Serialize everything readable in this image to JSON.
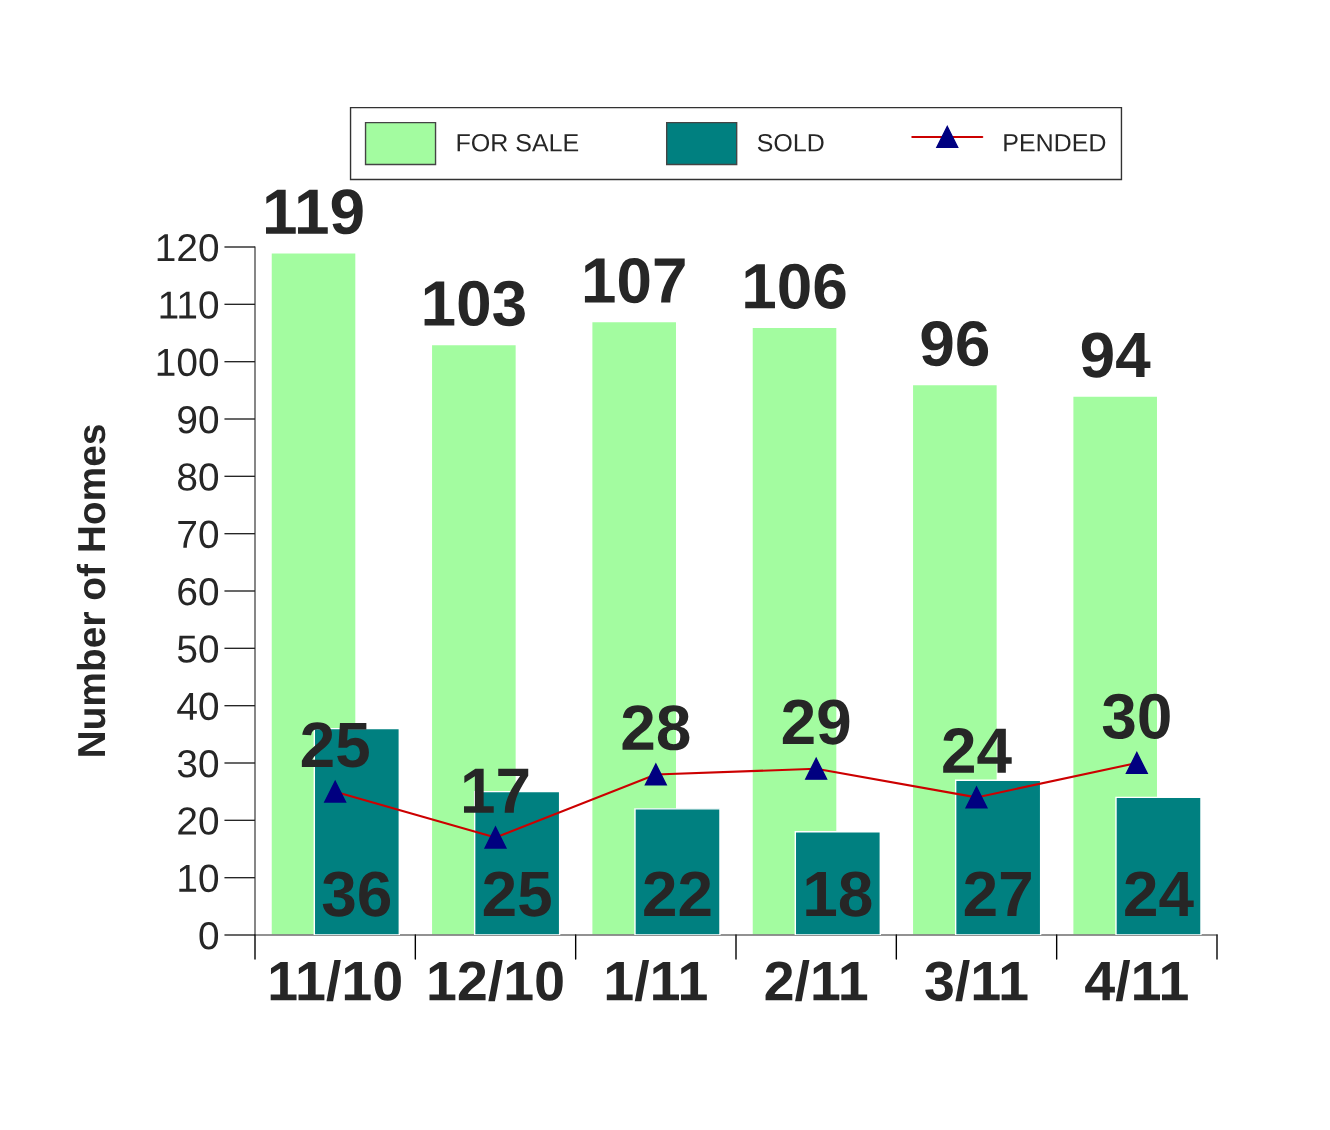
{
  "chart_data": {
    "type": "bar",
    "ylabel": "Number of Homes",
    "categories": [
      "11/10",
      "12/10",
      "1/11",
      "2/11",
      "3/11",
      "4/11"
    ],
    "series": [
      {
        "name": "FOR SALE",
        "color": "#a3fca0",
        "values": [
          119,
          103,
          107,
          106,
          96,
          94
        ]
      },
      {
        "name": "SOLD",
        "color": "#008080",
        "values": [
          36,
          25,
          22,
          18,
          27,
          24
        ]
      },
      {
        "name": "PENDED",
        "type": "line",
        "color": "#cc0000",
        "values": [
          25,
          17,
          28,
          29,
          24,
          30
        ]
      }
    ],
    "marker": "triangle",
    "line_style": "solid",
    "ylim": [
      0,
      120
    ],
    "yticks": [
      0,
      10,
      20,
      30,
      40,
      50,
      60,
      70,
      80,
      90,
      100,
      110,
      120
    ],
    "grid": false,
    "legend": "top",
    "data_labels": true
  }
}
